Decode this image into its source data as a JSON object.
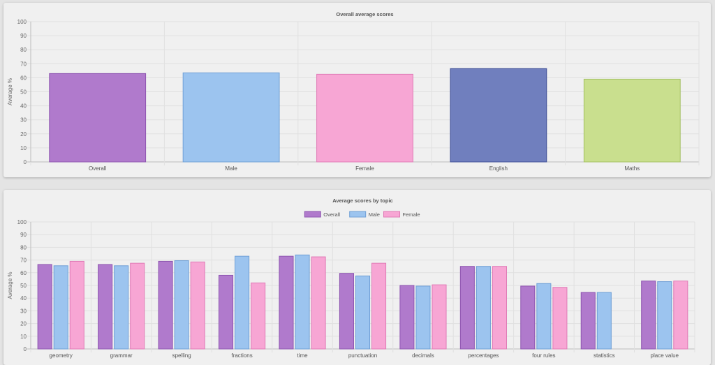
{
  "chart_data": [
    {
      "type": "bar",
      "title": "Overall average scores",
      "xlabel": "",
      "ylabel": "Average %",
      "ylim": [
        0,
        100
      ],
      "yticks": [
        0,
        10,
        20,
        30,
        40,
        50,
        60,
        70,
        80,
        90,
        100
      ],
      "grid": true,
      "legend": "none",
      "categories": [
        "Overall",
        "Male",
        "Female",
        "English",
        "Maths"
      ],
      "values": [
        63,
        63.5,
        62.5,
        66.5,
        59
      ],
      "colors": [
        {
          "fill": "#b07acc",
          "stroke": "#8e55b0"
        },
        {
          "fill": "#9cc4ef",
          "stroke": "#6f9fd6"
        },
        {
          "fill": "#f7a6d4",
          "stroke": "#e07ab6"
        },
        {
          "fill": "#707fbe",
          "stroke": "#3f4f97"
        },
        {
          "fill": "#c9df8e",
          "stroke": "#a3c062"
        }
      ]
    },
    {
      "type": "bar",
      "title": "Average scores by topic",
      "xlabel": "",
      "ylabel": "Average %",
      "ylim": [
        0,
        100
      ],
      "yticks": [
        0,
        10,
        20,
        30,
        40,
        50,
        60,
        70,
        80,
        90,
        100
      ],
      "grid": true,
      "legend": "top-center",
      "categories": [
        "geometry",
        "grammar",
        "spelling",
        "fractions",
        "time",
        "punctuation",
        "decimals",
        "percentages",
        "four rules",
        "statistics",
        "place value"
      ],
      "series": [
        {
          "name": "Overall",
          "fill": "#b07acc",
          "stroke": "#8e55b0",
          "values": [
            66.5,
            66.5,
            69,
            58,
            73,
            59.5,
            50,
            65,
            49.5,
            44.5,
            53.5
          ]
        },
        {
          "name": "Male",
          "fill": "#9cc4ef",
          "stroke": "#6f9fd6",
          "values": [
            65.5,
            65.5,
            69.5,
            73,
            74,
            57.5,
            49.5,
            65,
            51.5,
            44.5,
            53
          ]
        },
        {
          "name": "Female",
          "fill": "#f7a6d4",
          "stroke": "#e07ab6",
          "values": [
            69,
            67.5,
            68.5,
            52,
            72.5,
            67.5,
            50.5,
            65,
            48.5,
            null,
            53.5
          ]
        }
      ]
    }
  ]
}
